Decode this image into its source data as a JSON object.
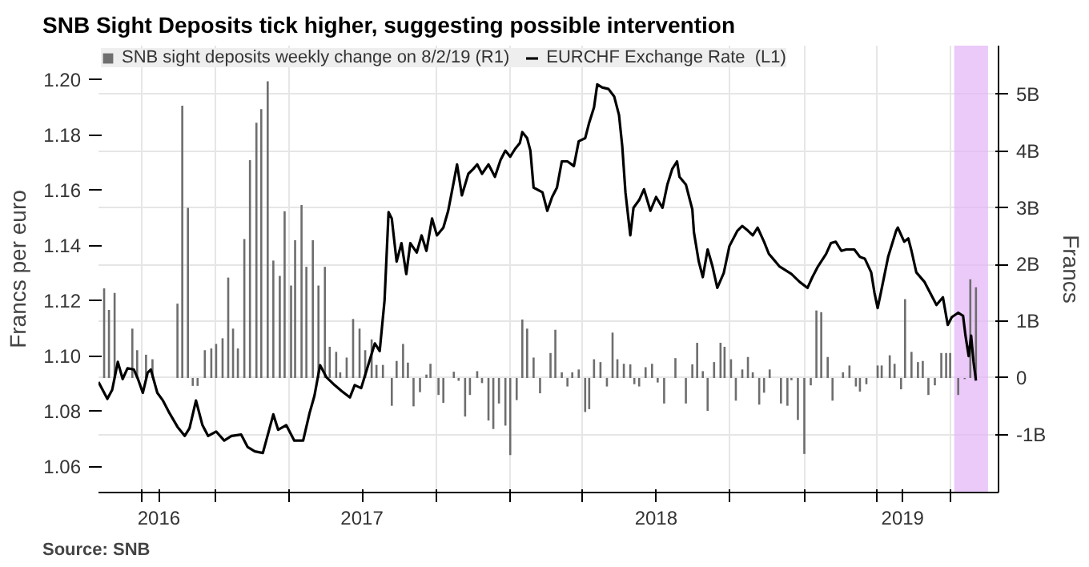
{
  "chart_data": {
    "type": "line",
    "title": "SNB Sight Deposits tick higher, suggesting possible intervention",
    "ylabel": "Francs per euro",
    "y2label": "Francs",
    "annotations": [
      "Source: SNB"
    ],
    "legend": "top left",
    "grid": true,
    "xlim": [
      "2016-08-08",
      "2019-08-30"
    ],
    "xticks": [
      {
        "value": "2016-10-01",
        "label": null
      },
      {
        "value": "2016-10-22",
        "label": "2016"
      },
      {
        "value": "2017-01-01",
        "label": null
      },
      {
        "value": "2017-04-01",
        "label": null
      },
      {
        "value": "2017-07-01",
        "label": "2017"
      },
      {
        "value": "2017-10-01",
        "label": null
      },
      {
        "value": "2018-01-01",
        "label": null
      },
      {
        "value": "2018-04-01",
        "label": null
      },
      {
        "value": "2018-07-01",
        "label": "2018"
      },
      {
        "value": "2018-10-01",
        "label": null
      },
      {
        "value": "2019-01-01",
        "label": null
      },
      {
        "value": "2019-04-01",
        "label": null
      },
      {
        "value": "2019-05-03",
        "label": "2019"
      },
      {
        "value": "2019-07-01",
        "label": null
      }
    ],
    "ylim": [
      1.0505,
      1.2123
    ],
    "yticks": [
      1.06,
      1.08,
      {
        "value": 1.1,
        "label": "1.10"
      },
      1.12,
      1.14,
      1.16,
      1.18,
      {
        "value": 1.2,
        "label": "1.20"
      }
    ],
    "y2lim": [
      -2.02,
      5.86
    ],
    "y2ticks": [
      {
        "value": -1,
        "label": "-1B"
      },
      0,
      {
        "value": 1,
        "label": "1B"
      },
      {
        "value": 2,
        "label": "2B"
      },
      {
        "value": 3,
        "label": "3B"
      },
      {
        "value": 4,
        "label": "4B"
      },
      {
        "value": 5,
        "label": "5B"
      }
    ],
    "bands": [
      {
        "axis": "x",
        "from": "2019-07-06",
        "to": "2019-08-17",
        "label": null,
        "color": "#e2b4f7"
      }
    ],
    "series": [
      {
        "name": "SNB sight deposits weekly change on 8/2/19 (R1)",
        "type": "bar",
        "axis": "y2",
        "color": "#6e6e6e",
        "x": [
          "2016-08-15",
          "2016-08-21",
          "2016-08-28",
          "2016-09-19",
          "2016-09-25",
          "2016-10-06",
          "2016-10-14",
          "2016-11-14",
          "2016-11-20",
          "2016-11-27",
          "2016-12-03",
          "2016-12-09",
          "2016-12-18",
          "2016-12-26",
          "2017-01-01",
          "2017-01-09",
          "2017-01-16",
          "2017-01-22",
          "2017-01-28",
          "2017-02-05",
          "2017-02-12",
          "2017-02-20",
          "2017-02-26",
          "2017-03-06",
          "2017-03-13",
          "2017-03-21",
          "2017-03-27",
          "2017-04-04",
          "2017-04-09",
          "2017-04-17",
          "2017-04-23",
          "2017-05-01",
          "2017-05-08",
          "2017-05-16",
          "2017-05-22",
          "2017-05-30",
          "2017-06-04",
          "2017-06-12",
          "2017-06-20",
          "2017-06-28",
          "2017-07-05",
          "2017-07-13",
          "2017-07-19",
          "2017-07-27",
          "2017-08-07",
          "2017-08-13",
          "2017-08-21",
          "2017-08-27",
          "2017-09-03",
          "2017-09-11",
          "2017-09-19",
          "2017-09-24",
          "2017-10-04",
          "2017-10-10",
          "2017-10-23",
          "2017-10-29",
          "2017-11-06",
          "2017-11-12",
          "2017-11-21",
          "2017-11-27",
          "2017-12-05",
          "2017-12-11",
          "2017-12-18",
          "2017-12-26",
          "2018-01-01",
          "2018-01-09",
          "2018-01-16",
          "2018-01-22",
          "2018-01-30",
          "2018-02-07",
          "2018-02-20",
          "2018-02-26",
          "2018-03-06",
          "2018-03-13",
          "2018-03-19",
          "2018-03-27",
          "2018-04-04",
          "2018-04-09",
          "2018-04-15",
          "2018-04-23",
          "2018-05-01",
          "2018-05-08",
          "2018-05-14",
          "2018-05-22",
          "2018-05-30",
          "2018-06-04",
          "2018-06-10",
          "2018-06-18",
          "2018-06-26",
          "2018-07-03",
          "2018-07-11",
          "2018-07-25",
          "2018-08-07",
          "2018-08-15",
          "2018-08-21",
          "2018-08-28",
          "2018-09-03",
          "2018-09-11",
          "2018-09-19",
          "2018-09-24",
          "2018-10-02",
          "2018-10-08",
          "2018-10-16",
          "2018-10-23",
          "2018-10-29",
          "2018-11-06",
          "2018-11-12",
          "2018-11-19",
          "2018-11-27",
          "2018-12-03",
          "2018-12-11",
          "2018-12-16",
          "2018-12-24",
          "2019-01-01",
          "2019-01-09",
          "2019-01-16",
          "2019-01-22",
          "2019-01-30",
          "2019-02-05",
          "2019-02-18",
          "2019-02-26",
          "2019-03-06",
          "2019-03-11",
          "2019-03-19",
          "2019-04-02",
          "2019-04-07",
          "2019-04-17",
          "2019-04-23",
          "2019-05-01",
          "2019-05-06",
          "2019-05-14",
          "2019-05-22",
          "2019-05-28",
          "2019-06-04",
          "2019-06-12",
          "2019-06-20",
          "2019-06-26",
          "2019-07-01",
          "2019-07-11",
          "2019-07-19",
          "2019-07-26",
          "2019-08-02"
        ],
        "values": [
          1.58,
          1.2,
          1.5,
          0.87,
          0.49,
          0.41,
          0.33,
          1.31,
          4.8,
          3.0,
          -0.14,
          -0.14,
          0.49,
          0.52,
          0.6,
          0.7,
          1.77,
          0.87,
          0.52,
          2.45,
          3.84,
          4.5,
          4.74,
          5.23,
          2.07,
          1.8,
          2.94,
          1.63,
          2.43,
          3.05,
          1.96,
          2.43,
          1.63,
          1.96,
          0.55,
          0.46,
          0.1,
          0.36,
          1.04,
          0.87,
          0.49,
          0.68,
          0.23,
          0.23,
          -0.49,
          0.3,
          0.6,
          0.27,
          -0.5,
          -0.25,
          0.06,
          0.25,
          -0.3,
          -0.44,
          0.11,
          -0.05,
          -0.68,
          -0.3,
          0.12,
          -0.09,
          -0.75,
          -0.9,
          -0.45,
          -0.84,
          -1.36,
          -0.39,
          1.03,
          0.87,
          0.36,
          -0.27,
          0.44,
          0.85,
          0.1,
          -0.15,
          0.1,
          0.15,
          -0.6,
          -0.55,
          0.33,
          0.28,
          -0.15,
          0.8,
          0.33,
          0.25,
          0.24,
          -0.11,
          -0.15,
          0.19,
          0.25,
          -0.08,
          -0.45,
          0.35,
          -0.45,
          0.24,
          0.62,
          0.12,
          -0.58,
          0.28,
          0.62,
          0.55,
          0.33,
          -0.4,
          0.15,
          0.37,
          0.1,
          -0.47,
          -0.26,
          0.15,
          null,
          -0.45,
          -0.49,
          -0.04,
          -0.74,
          -1.34,
          -0.13,
          1.19,
          1.16,
          0.37,
          -0.4,
          0.1,
          0.22,
          -0.15,
          -0.24,
          -0.11,
          0.22,
          0.22,
          0.4,
          0.25,
          -0.2,
          1.39,
          0.46,
          0.28,
          0.3,
          -0.3,
          -0.13,
          0.44,
          0.44,
          0.44,
          -0.3,
          -0.02,
          1.74,
          1.6
        ]
      },
      {
        "name": "EURCHF Exchange Rate  (L1)",
        "color": "#000000",
        "x": [
          "2016-08-08",
          "2016-08-19",
          "2016-08-25",
          "2016-09-01",
          "2016-09-07",
          "2016-09-13",
          "2016-09-21",
          "2016-09-26",
          "2016-10-02",
          "2016-10-08",
          "2016-10-12",
          "2016-10-20",
          "2016-10-27",
          "2016-11-04",
          "2016-11-14",
          "2016-11-23",
          "2016-11-29",
          "2016-12-07",
          "2016-12-15",
          "2016-12-22",
          "2017-01-01",
          "2017-01-11",
          "2017-01-20",
          "2017-02-01",
          "2017-02-09",
          "2017-02-18",
          "2017-02-28",
          "2017-03-13",
          "2017-03-19",
          "2017-03-29",
          "2017-04-08",
          "2017-04-19",
          "2017-04-27",
          "2017-05-03",
          "2017-05-10",
          "2017-05-18",
          "2017-05-28",
          "2017-06-06",
          "2017-06-16",
          "2017-06-22",
          "2017-06-30",
          "2017-07-07",
          "2017-07-17",
          "2017-07-23",
          "2017-07-29",
          "2017-08-03",
          "2017-08-07",
          "2017-08-13",
          "2017-08-19",
          "2017-08-25",
          "2017-08-30",
          "2017-09-07",
          "2017-09-13",
          "2017-09-19",
          "2017-09-26",
          "2017-10-02",
          "2017-10-10",
          "2017-10-16",
          "2017-10-23",
          "2017-10-27",
          "2017-11-02",
          "2017-11-10",
          "2017-11-16",
          "2017-11-21",
          "2017-11-27",
          "2017-12-05",
          "2017-12-13",
          "2017-12-20",
          "2017-12-26",
          "2018-01-01",
          "2018-01-07",
          "2018-01-13",
          "2018-01-16",
          "2018-01-22",
          "2018-01-26",
          "2018-01-30",
          "2018-02-10",
          "2018-02-16",
          "2018-02-22",
          "2018-02-28",
          "2018-03-06",
          "2018-03-13",
          "2018-03-21",
          "2018-03-27",
          "2018-04-04",
          "2018-04-09",
          "2018-04-15",
          "2018-04-19",
          "2018-04-25",
          "2018-05-03",
          "2018-05-10",
          "2018-05-16",
          "2018-05-20",
          "2018-05-24",
          "2018-05-30",
          "2018-06-03",
          "2018-06-10",
          "2018-06-16",
          "2018-06-24",
          "2018-07-01",
          "2018-07-09",
          "2018-07-15",
          "2018-07-21",
          "2018-07-27",
          "2018-07-30",
          "2018-08-07",
          "2018-08-11",
          "2018-08-15",
          "2018-08-17",
          "2018-08-23",
          "2018-08-28",
          "2018-09-03",
          "2018-09-09",
          "2018-09-15",
          "2018-09-23",
          "2018-09-30",
          "2018-10-10",
          "2018-10-16",
          "2018-10-23",
          "2018-10-29",
          "2018-11-04",
          "2018-11-12",
          "2018-11-18",
          "2018-11-23",
          "2018-12-01",
          "2018-12-07",
          "2018-12-16",
          "2018-12-26",
          "2019-01-05",
          "2019-01-11",
          "2019-01-18",
          "2019-01-28",
          "2019-02-03",
          "2019-02-09",
          "2019-02-16",
          "2019-02-22",
          "2019-03-04",
          "2019-03-11",
          "2019-03-17",
          "2019-03-25",
          "2019-03-29",
          "2019-04-02",
          "2019-04-06",
          "2019-04-15",
          "2019-04-25",
          "2019-04-27",
          "2019-05-05",
          "2019-05-10",
          "2019-05-14",
          "2019-05-20",
          "2019-05-30",
          "2019-06-04",
          "2019-06-14",
          "2019-06-22",
          "2019-06-28",
          "2019-07-03",
          "2019-07-11",
          "2019-07-17",
          "2019-07-20",
          "2019-07-24",
          "2019-07-27",
          "2019-07-30",
          "2019-08-02"
        ],
        "values": [
          1.0905,
          1.0844,
          1.0877,
          1.0978,
          1.0916,
          1.0955,
          1.095,
          1.0916,
          1.0866,
          1.0939,
          1.095,
          1.0866,
          1.0838,
          1.0793,
          1.0743,
          1.071,
          1.0738,
          1.0838,
          1.0749,
          1.071,
          1.0726,
          1.0693,
          1.071,
          1.0715,
          1.067,
          1.0654,
          1.0648,
          1.0788,
          1.0732,
          1.0749,
          1.0693,
          1.0693,
          1.0793,
          1.0855,
          1.0966,
          1.0922,
          1.0894,
          1.0872,
          1.0849,
          1.0894,
          1.0883,
          1.095,
          1.1045,
          1.1017,
          1.12,
          1.152,
          1.1497,
          1.1341,
          1.1408,
          1.1296,
          1.1408,
          1.1374,
          1.1436,
          1.138,
          1.1497,
          1.1436,
          1.1464,
          1.1525,
          1.1631,
          1.1693,
          1.1581,
          1.1659,
          1.1676,
          1.1693,
          1.1659,
          1.1693,
          1.1648,
          1.1709,
          1.1743,
          1.1721,
          1.1749,
          1.1771,
          1.181,
          1.1788,
          1.1743,
          1.1609,
          1.1592,
          1.1525,
          1.1575,
          1.1609,
          1.1704,
          1.1704,
          1.1687,
          1.1777,
          1.1788,
          1.1844,
          1.19,
          1.1983,
          1.1972,
          1.1966,
          1.1939,
          1.1872,
          1.176,
          1.1592,
          1.1436,
          1.1536,
          1.1564,
          1.1603,
          1.1525,
          1.1575,
          1.1536,
          1.162,
          1.1676,
          1.1704,
          1.1648,
          1.162,
          1.1575,
          1.153,
          1.1447,
          1.1341,
          1.1285,
          1.1385,
          1.1324,
          1.1246,
          1.13,
          1.1397,
          1.1453,
          1.147,
          1.1453,
          1.1436,
          1.1464,
          1.1413,
          1.1369,
          1.1352,
          1.1324,
          1.1313,
          1.1296,
          1.1268,
          1.1246,
          1.1285,
          1.1324,
          1.1369,
          1.1408,
          1.1413,
          1.138,
          1.1385,
          1.1385,
          1.1358,
          1.1352,
          1.1302,
          1.1229,
          1.1173,
          1.1229,
          1.1358,
          1.1453,
          1.1464,
          1.1413,
          1.1425,
          1.138,
          1.1302,
          1.1268,
          1.124,
          1.1184,
          1.1212,
          1.1112,
          1.114,
          1.1156,
          1.1145,
          1.1073,
          1.0999,
          1.1073,
          1.0978,
          1.091
        ]
      }
    ]
  }
}
